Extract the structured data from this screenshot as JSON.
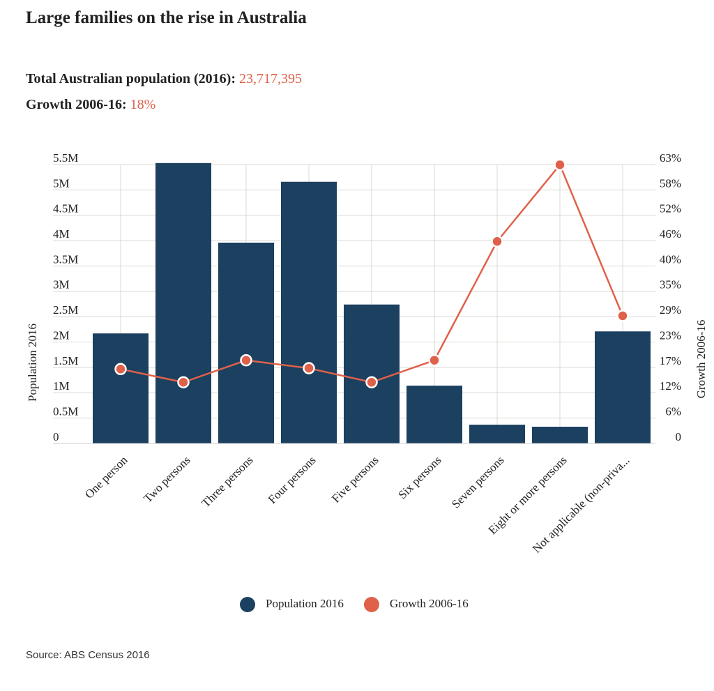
{
  "header": {
    "title": "Large families on the rise in Australia",
    "population_label": "Total Australian population (2016):",
    "population_value": "23,717,395",
    "growth_label": "Growth 2006-16:",
    "growth_value": "18%"
  },
  "chart_data": {
    "type": "bar_line",
    "categories": [
      "One person",
      "Two persons",
      "Three persons",
      "Four persons",
      "Five persons",
      "Six persons",
      "Seven persons",
      "Eight or more persons",
      "Not applicable (non-priva..."
    ],
    "series": [
      {
        "name": "Population 2016",
        "type": "bar",
        "color": "#1b4060",
        "values": [
          2170000,
          5530000,
          3960000,
          5160000,
          2740000,
          1140000,
          370000,
          330000,
          2210000
        ]
      },
      {
        "name": "Growth 2006-16",
        "type": "line",
        "axis": "y2",
        "color": "#e0614a",
        "values": [
          16.9,
          13.9,
          18.9,
          17.1,
          13.9,
          18.9,
          45.9,
          63.3,
          29.0
        ]
      }
    ],
    "y_label": "Population 2016",
    "y2_label": "Growth 2006-16",
    "ylim": [
      0,
      5500000
    ],
    "yticks": [
      0,
      {
        "value": 500000,
        "label": "0.5M"
      },
      {
        "value": 1000000,
        "label": "1M"
      },
      {
        "value": 1500000,
        "label": "1.5M"
      },
      {
        "value": 2000000,
        "label": "2M"
      },
      {
        "value": 2500000,
        "label": "2.5M"
      },
      {
        "value": 3000000,
        "label": "3M"
      },
      {
        "value": 3500000,
        "label": "3.5M"
      },
      {
        "value": 4000000,
        "label": "4M"
      },
      {
        "value": 4500000,
        "label": "4.5M"
      },
      {
        "value": 5000000,
        "label": "5M"
      },
      {
        "value": 5500000,
        "label": "5.5M"
      }
    ],
    "y2lim": [
      0,
      63.36
    ],
    "y2ticks": [
      0,
      {
        "value": 5.76,
        "label": "6%"
      },
      {
        "value": 11.52,
        "label": "12%"
      },
      {
        "value": 17.28,
        "label": "17%"
      },
      {
        "value": 23.04,
        "label": "23%"
      },
      {
        "value": 28.8,
        "label": "29%"
      },
      {
        "value": 34.56,
        "label": "35%"
      },
      {
        "value": 40.32,
        "label": "40%"
      },
      {
        "value": 46.08,
        "label": "46%"
      },
      {
        "value": 51.84,
        "label": "52%"
      },
      {
        "value": 57.6,
        "label": "58%"
      },
      {
        "value": 63.36,
        "label": "63%"
      }
    ],
    "grid": true
  },
  "source": "Source: ABS Census 2016"
}
